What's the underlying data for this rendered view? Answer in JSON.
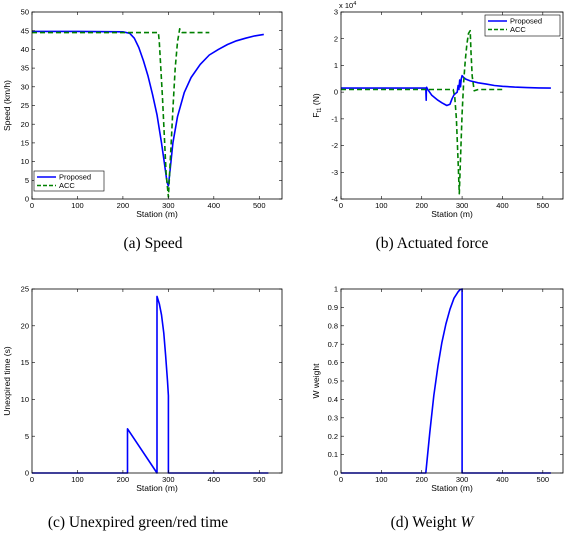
{
  "colors": {
    "proposed": "#0000ff",
    "acc": "#008000",
    "axis": "#000000"
  },
  "chart_data": [
    {
      "id": "a",
      "type": "line",
      "caption": "(a) Speed",
      "xlabel": "Station (m)",
      "ylabel": "Speed (km/h)",
      "xlim": [
        0,
        550
      ],
      "ylim": [
        0,
        50
      ],
      "xticks": [
        0,
        100,
        200,
        300,
        400,
        500
      ],
      "yticks": [
        0,
        5,
        10,
        15,
        20,
        25,
        30,
        35,
        40,
        45,
        50
      ],
      "grid": false,
      "legend": {
        "position": "bottom-left",
        "entries": [
          "Proposed",
          "ACC"
        ]
      },
      "series": [
        {
          "name": "Proposed",
          "style": "solid",
          "color": "#0000ff",
          "x": [
            0,
            100,
            200,
            215,
            225,
            235,
            245,
            255,
            265,
            275,
            285,
            292,
            297,
            300,
            304,
            310,
            320,
            335,
            350,
            370,
            390,
            410,
            430,
            450,
            470,
            490,
            510
          ],
          "y": [
            44.8,
            44.8,
            44.7,
            44.3,
            43,
            40.5,
            37,
            33,
            28,
            22.5,
            15,
            9,
            4.5,
            3.5,
            8,
            15,
            22,
            28.5,
            32.5,
            36,
            38.5,
            40,
            41.3,
            42.3,
            43,
            43.6,
            44
          ]
        },
        {
          "name": "ACC",
          "style": "dashed",
          "color": "#008000",
          "x": [
            0,
            100,
            200,
            250,
            278,
            280,
            283,
            287,
            291,
            295,
            300,
            305,
            310,
            315,
            320,
            325,
            330,
            340,
            360,
            390
          ],
          "y": [
            44.5,
            44.5,
            44.5,
            44.5,
            44.5,
            42,
            36,
            27,
            17,
            7,
            0.5,
            12,
            24,
            35,
            42,
            45.5,
            44.5,
            44.5,
            44.5,
            44.5
          ]
        }
      ]
    },
    {
      "id": "b",
      "type": "line",
      "caption": "(b) Actuated force",
      "xlabel": "Station (m)",
      "ylabel": "F_t1 (N)",
      "ylabel_main": "F",
      "ylabel_sub": "t1",
      "ylabel_unit": " (N)",
      "exponent_label": "x 10",
      "exponent_power": "4",
      "xlim": [
        0,
        550
      ],
      "ylim": [
        -4,
        3
      ],
      "xticks": [
        0,
        100,
        200,
        300,
        400,
        500
      ],
      "yticks": [
        -4,
        -3,
        -2,
        -1,
        0,
        1,
        2,
        3
      ],
      "grid": false,
      "legend": {
        "position": "top-right",
        "entries": [
          "Proposed",
          "ACC"
        ]
      },
      "series": [
        {
          "name": "Proposed",
          "style": "solid",
          "color": "#0000ff",
          "x": [
            0,
            100,
            200,
            210,
            211,
            211.5,
            212,
            215,
            225,
            240,
            250,
            262,
            270,
            275,
            280,
            288,
            290,
            292,
            294,
            296,
            298,
            300,
            304,
            310,
            320,
            340,
            360,
            380,
            400,
            430,
            460,
            490,
            520
          ],
          "y": [
            0.15,
            0.15,
            0.15,
            0.15,
            -0.3,
            0.15,
            0.18,
            0.1,
            -0.12,
            -0.3,
            -0.4,
            -0.5,
            -0.45,
            -0.25,
            -0.1,
            0,
            0.25,
            0.1,
            0.45,
            0.2,
            0.5,
            0.62,
            0.55,
            0.48,
            0.42,
            0.35,
            0.3,
            0.25,
            0.22,
            0.19,
            0.17,
            0.16,
            0.15
          ]
        },
        {
          "name": "ACC",
          "style": "dashed",
          "color": "#008000",
          "x": [
            0,
            100,
            200,
            250,
            270,
            278,
            282,
            286,
            290,
            293,
            296,
            300,
            304,
            308,
            312,
            316,
            320,
            322,
            325,
            330,
            340,
            360,
            400
          ],
          "y": [
            0.1,
            0.1,
            0.1,
            0.1,
            0.1,
            0.1,
            -0.2,
            -1,
            -2.6,
            -3.8,
            -2.5,
            -0.8,
            0.4,
            1.2,
            1.8,
            2.2,
            2.3,
            1.5,
            0.6,
            0.05,
            0.1,
            0.1,
            0.1
          ]
        }
      ]
    },
    {
      "id": "c",
      "type": "line",
      "caption": "(c) Unexpired green/red time",
      "xlabel": "Station (m)",
      "ylabel": "Unexpired time (s)",
      "xlim": [
        0,
        550
      ],
      "ylim": [
        0,
        25
      ],
      "xticks": [
        0,
        100,
        200,
        300,
        400,
        500
      ],
      "yticks": [
        0,
        5,
        10,
        15,
        20,
        25
      ],
      "grid": false,
      "series": [
        {
          "name": "",
          "style": "solid",
          "color": "#0000ff",
          "x": [
            0,
            210,
            210,
            275,
            275,
            280,
            285,
            290,
            294,
            298,
            300,
            300,
            520
          ],
          "y": [
            0,
            0,
            6,
            0,
            24,
            23,
            21.5,
            19,
            16,
            12.5,
            10.5,
            0,
            0
          ]
        }
      ]
    },
    {
      "id": "d",
      "type": "line",
      "caption": "(d) Weight W",
      "caption_main": "(d) Weight ",
      "caption_var": "W",
      "xlabel": "Station (m)",
      "ylabel": "W weight",
      "xlim": [
        0,
        550
      ],
      "ylim": [
        0,
        1
      ],
      "xticks": [
        0,
        100,
        200,
        300,
        400,
        500
      ],
      "yticks": [
        0,
        0.1,
        0.2,
        0.3,
        0.4,
        0.5,
        0.6,
        0.7,
        0.8,
        0.9,
        1
      ],
      "grid": false,
      "series": [
        {
          "name": "",
          "style": "solid",
          "color": "#0000ff",
          "x": [
            0,
            210,
            220,
            230,
            240,
            250,
            260,
            270,
            280,
            290,
            295,
            300,
            300,
            520
          ],
          "y": [
            0,
            0,
            0.22,
            0.42,
            0.58,
            0.71,
            0.81,
            0.89,
            0.95,
            0.985,
            0.997,
            1,
            0,
            0
          ]
        }
      ]
    }
  ]
}
